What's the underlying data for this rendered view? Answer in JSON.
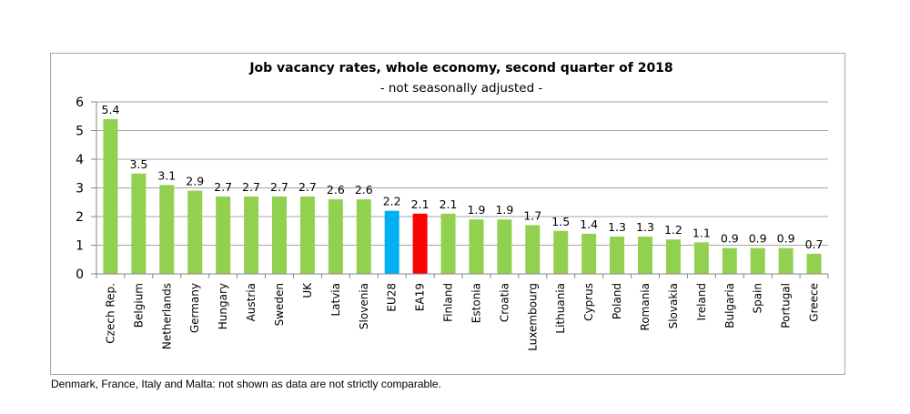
{
  "chart_data": {
    "type": "bar",
    "title": "Job vacancy rates, whole economy, second quarter of 2018",
    "subtitle": "- not seasonally adjusted -",
    "xlabel": "",
    "ylabel": "",
    "ylim": [
      0,
      6
    ],
    "yticks": [
      0,
      1,
      2,
      3,
      4,
      5,
      6
    ],
    "grid": true,
    "legend": "none",
    "categories": [
      "Czech Rep.",
      "Belgium",
      "Netherlands",
      "Germany",
      "Hungary",
      "Austria",
      "Sweden",
      "UK",
      "Latvia",
      "Slovenia",
      "EU28",
      "EA19",
      "Finland",
      "Estonia",
      "Croatia",
      "Luxembourg",
      "Lithuania",
      "Cyprus",
      "Poland",
      "Romania",
      "Slovakia",
      "Ireland",
      "Bulgaria",
      "Spain",
      "Portugal",
      "Greece"
    ],
    "values": [
      5.4,
      3.5,
      3.1,
      2.9,
      2.7,
      2.7,
      2.7,
      2.7,
      2.6,
      2.6,
      2.2,
      2.1,
      2.1,
      1.9,
      1.9,
      1.7,
      1.5,
      1.4,
      1.3,
      1.3,
      1.2,
      1.1,
      0.9,
      0.9,
      0.9,
      0.7
    ],
    "value_labels": [
      "5.4",
      "3.5",
      "3.1",
      "2.9",
      "2.7",
      "2.7",
      "2.7",
      "2.7",
      "2.6",
      "2.6",
      "2.2",
      "2.1",
      "2.1",
      "1.9",
      "1.9",
      "1.7",
      "1.5",
      "1.4",
      "1.3",
      "1.3",
      "1.2",
      "1.1",
      "0.9",
      "0.9",
      "0.9",
      "0.7"
    ],
    "colors": {
      "default": "#92d050",
      "EU28": "#00b0f0",
      "EA19": "#ff0000",
      "grid": "#a6a6a6",
      "axis": "#868686"
    }
  },
  "footnote": "Denmark, France, Italy and Malta: not shown as data are not strictly comparable."
}
